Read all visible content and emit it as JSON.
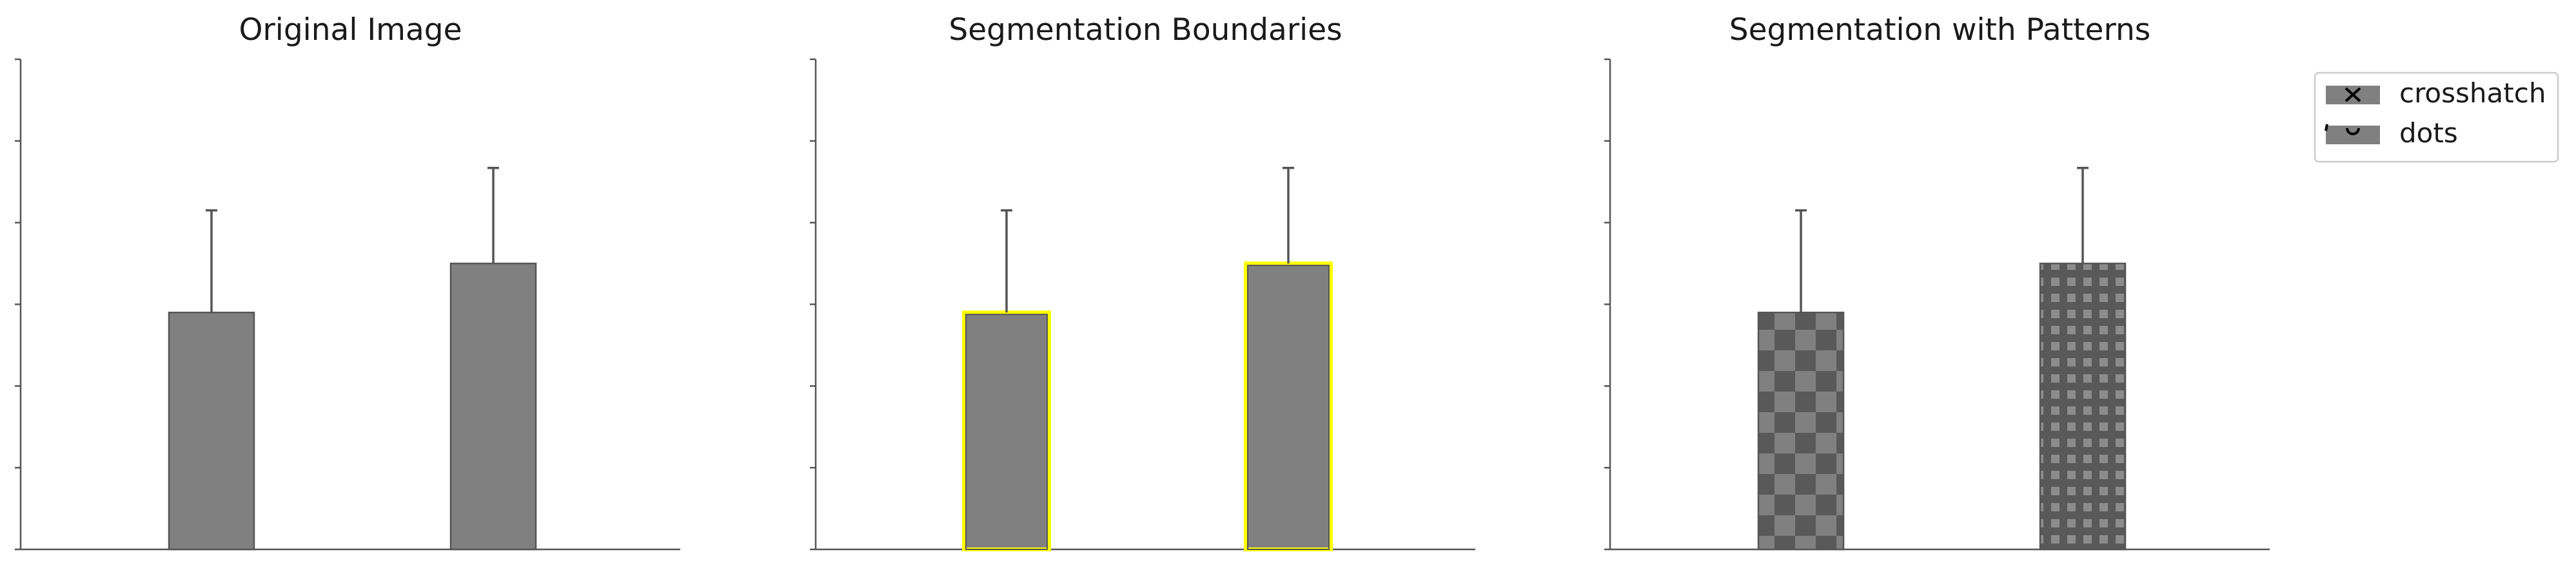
{
  "chart_data": [
    {
      "type": "bar",
      "title": "Original Image",
      "style": "plain",
      "categories": [
        "",
        ""
      ],
      "values": [
        2.9,
        3.5
      ],
      "errors": [
        1.25,
        1.17
      ],
      "ylim": [
        0,
        6
      ],
      "grid": false,
      "bar_color": "#808080"
    },
    {
      "type": "bar",
      "title": "Segmentation Boundaries",
      "style": "boundaries",
      "categories": [
        "",
        ""
      ],
      "values": [
        2.9,
        3.5
      ],
      "errors": [
        1.25,
        1.17
      ],
      "ylim": [
        0,
        6
      ],
      "grid": false,
      "bar_color": "#808080",
      "boundary_color": "#ffff00"
    },
    {
      "type": "bar",
      "title": "Segmentation with Patterns",
      "style": "patterns",
      "categories": [
        "",
        ""
      ],
      "values": [
        2.9,
        3.5
      ],
      "errors": [
        1.25,
        1.17
      ],
      "ylim": [
        0,
        6
      ],
      "grid": false,
      "bar_color": "#808080",
      "bar_patterns": [
        "crosshatch",
        "dots"
      ],
      "legend": {
        "placement": "outside right, top",
        "entries": [
          {
            "label": "crosshatch",
            "pattern": "crosshatch"
          },
          {
            "label": "dots",
            "pattern": "dots"
          }
        ]
      }
    }
  ]
}
